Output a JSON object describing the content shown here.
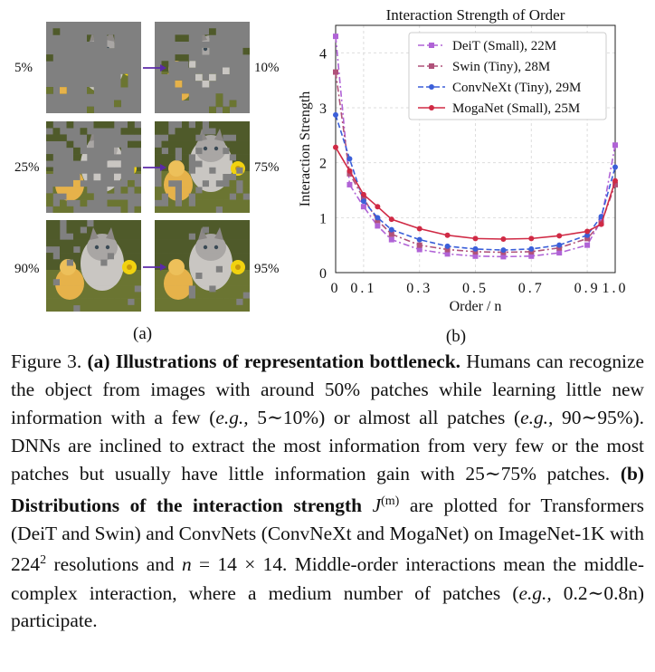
{
  "panel_a": {
    "label": "(a)",
    "rows": [
      {
        "left_pct": "5%",
        "right_pct": "10%",
        "left_visible": 0.05,
        "right_visible": 0.1
      },
      {
        "left_pct": "25%",
        "right_pct": "75%",
        "left_visible": 0.25,
        "right_visible": 0.75
      },
      {
        "left_pct": "90%",
        "right_pct": "95%",
        "left_visible": 0.9,
        "right_visible": 0.95
      }
    ]
  },
  "panel_b_label": "(b)",
  "chart_data": {
    "type": "line",
    "title": "Interaction Strength of Order",
    "xlabel": "Order / n",
    "ylabel": "Interaction Strength",
    "xlim": [
      0,
      1.0
    ],
    "ylim": [
      0,
      4.5
    ],
    "x": [
      0,
      0.05,
      0.1,
      0.15,
      0.2,
      0.3,
      0.4,
      0.5,
      0.6,
      0.7,
      0.8,
      0.9,
      0.95,
      1.0
    ],
    "x_tick_labels": [
      "0",
      "0.1",
      "0.3",
      "0.5",
      "0.7",
      "0.9",
      "1.0"
    ],
    "y_tick_labels": [
      "0",
      "1",
      "2",
      "3",
      "4"
    ],
    "grid": true,
    "legend_position": "top-right",
    "series": [
      {
        "name": "DeiT (Small), 22M",
        "color": "#b063d6",
        "dash": "dashdot",
        "marker": "square",
        "values": [
          4.3,
          1.6,
          1.2,
          0.85,
          0.6,
          0.42,
          0.34,
          0.3,
          0.29,
          0.3,
          0.36,
          0.5,
          0.95,
          2.32
        ]
      },
      {
        "name": "Swin (Tiny), 28M",
        "color": "#b0527a",
        "dash": "dashdot",
        "marker": "square",
        "values": [
          3.65,
          1.8,
          1.35,
          0.95,
          0.7,
          0.5,
          0.42,
          0.38,
          0.37,
          0.38,
          0.45,
          0.62,
          0.9,
          1.6
        ]
      },
      {
        "name": "ConvNeXt (Tiny), 29M",
        "color": "#3b5fd9",
        "dash": "dashed",
        "marker": "circle",
        "values": [
          2.87,
          2.07,
          1.3,
          1.0,
          0.78,
          0.6,
          0.48,
          0.43,
          0.41,
          0.43,
          0.5,
          0.68,
          1.02,
          1.92
        ]
      },
      {
        "name": "MogaNet (Small), 25M",
        "color": "#d02a45",
        "dash": "solid",
        "marker": "circle",
        "values": [
          2.28,
          1.85,
          1.42,
          1.2,
          0.97,
          0.8,
          0.68,
          0.62,
          0.61,
          0.62,
          0.67,
          0.75,
          0.88,
          1.67
        ]
      }
    ]
  },
  "caption": {
    "fig_label": "Figure 3.",
    "a_label": "(a)",
    "a_title": "Illustrations of representation bottleneck.",
    "s1": " Humans can recognize the object from images with around 50% patches while learning little new information with a few (",
    "eg": "e.g.,",
    "s2": " 5∼10%) or almost all patches (",
    "s3": " 90∼95%). DNNs are inclined to extract the most information from very few or the most patches but usually have little information gain with 25∼75% patches. ",
    "b_label": "(b)",
    "b_title": "Distributions of the interaction strength",
    "j_sym": "J",
    "j_sup": "(m)",
    "s4": " are plotted for Transformers (DeiT and Swin) and ConvNets (ConvNeXt and MogaNet) on ImageNet-1K with 224",
    "sup2": "2",
    "s5": " resolutions and ",
    "n_sym": "n",
    "s6": " = 14 × 14. Middle-order interactions mean the middle-complex interaction, where a medium number of patches (",
    "s7": " 0.2∼0.8n) participate."
  }
}
